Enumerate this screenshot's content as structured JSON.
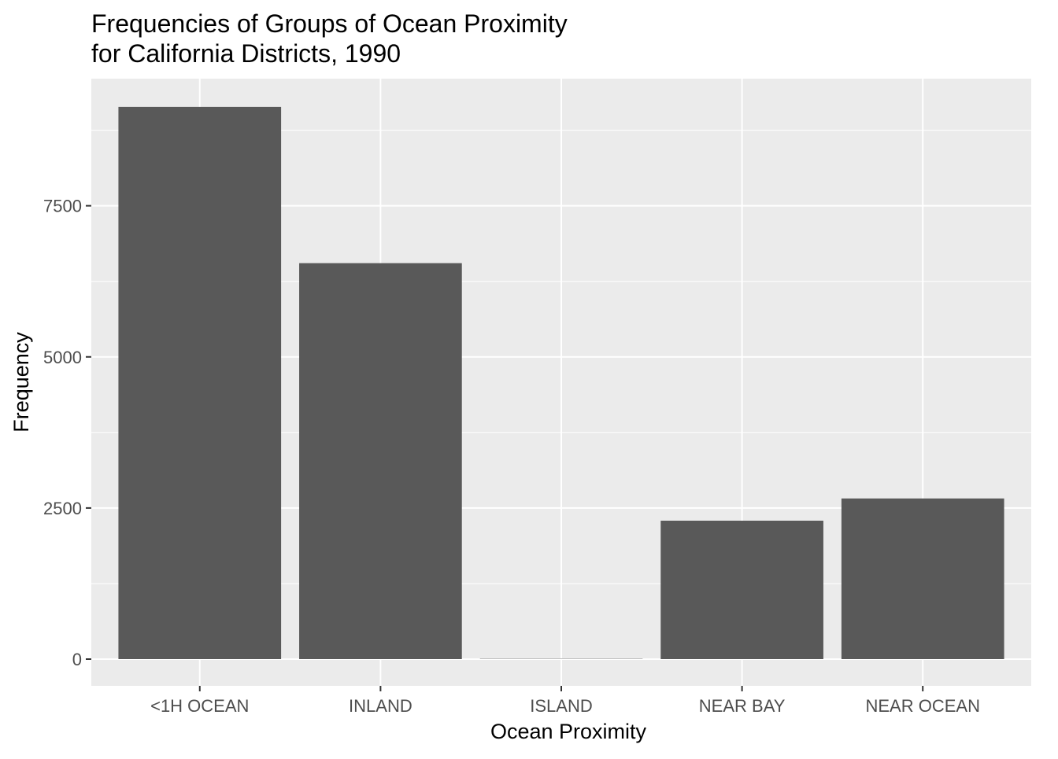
{
  "chart_data": {
    "type": "bar",
    "title": "Frequencies of Groups of Ocean Proximity",
    "subtitle": "for California Districts, 1990",
    "xlabel": "Ocean Proximity",
    "ylabel": "Frequency",
    "categories": [
      "<1H OCEAN",
      "INLAND",
      "ISLAND",
      "NEAR BAY",
      "NEAR OCEAN"
    ],
    "values": [
      9136,
      6551,
      5,
      2290,
      2658
    ],
    "ylim": [
      0,
      9600
    ],
    "yticks": [
      0,
      2500,
      5000,
      7500
    ],
    "ytick_labels": [
      "0",
      "2500",
      "5000",
      "7500"
    ],
    "grid": true,
    "legend": "none",
    "colors": {
      "bar": "#595959",
      "panel": "#ebebeb",
      "grid": "#ffffff",
      "tick_text": "#4d4d4d",
      "tick_mark": "#333333"
    }
  }
}
